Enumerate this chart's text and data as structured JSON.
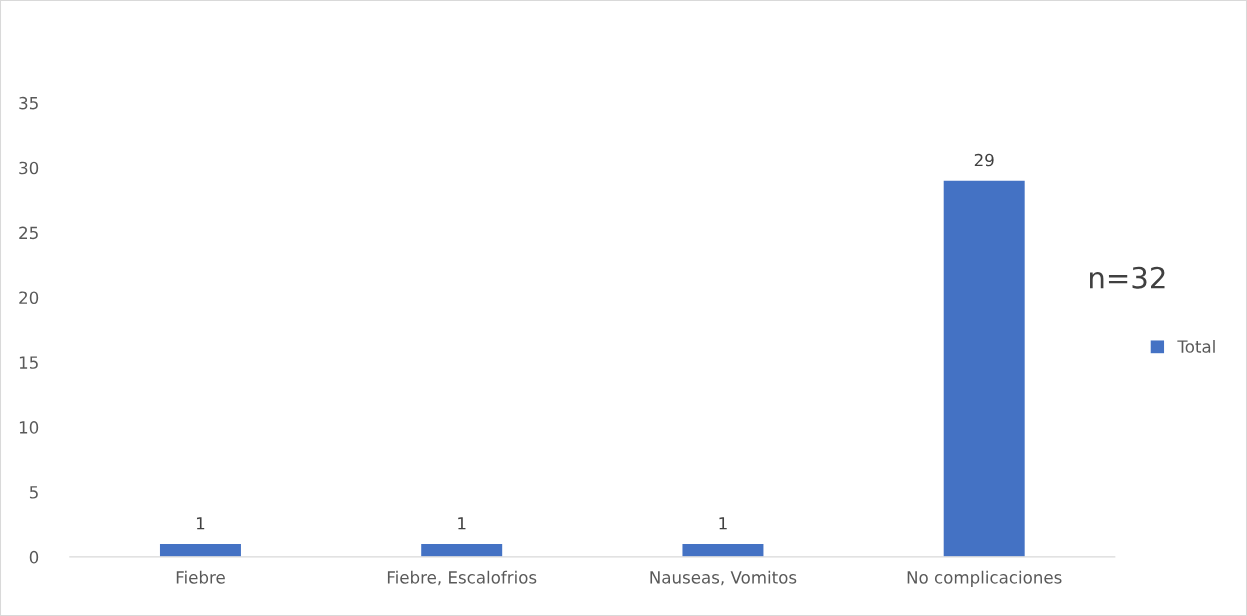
{
  "chart_data": {
    "type": "bar",
    "categories": [
      "Fiebre",
      "Fiebre, Escalofrios",
      "Nauseas, Vomitos",
      "No complicaciones"
    ],
    "series": [
      {
        "name": "Total",
        "color": "#4472c4",
        "values": [
          1,
          1,
          1,
          29
        ]
      }
    ],
    "ylim": [
      0,
      35
    ],
    "yticks": [
      0,
      5,
      10,
      15,
      20,
      25,
      30,
      35
    ],
    "grid": false,
    "legend": "right",
    "data_labels": true,
    "annotations": [
      "n=32"
    ]
  }
}
